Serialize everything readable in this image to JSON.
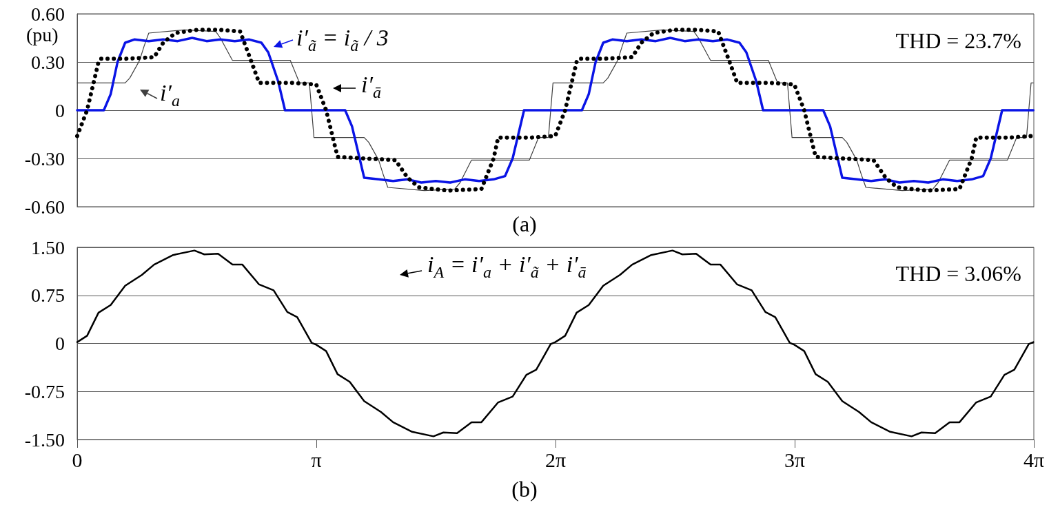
{
  "chart_data": [
    {
      "type": "line",
      "ylabel": "(pu)",
      "annotations": [
        "THD = 23.7%",
        "(a)"
      ],
      "xlim": [
        0,
        12.5664
      ],
      "ylim": [
        -0.6,
        0.6
      ],
      "yticks": [
        {
          "value": -0.6,
          "label": "-0.60"
        },
        {
          "value": -0.3,
          "label": "-0.30"
        },
        0,
        {
          "value": 0.3,
          "label": "0.30"
        },
        {
          "value": 0.6,
          "label": "0.60"
        }
      ],
      "grid": "y",
      "legend": "top left",
      "tick_labels": "y",
      "series": [
        {
          "name": "i′$_{a}$",
          "color": "#404040",
          "line_style": "solid",
          "x": [
            0,
            0.63,
            0.69,
            0.82,
            0.88,
            0.94,
            1.41,
            1.82,
            1.88,
            2.04,
            2.8,
            2.92,
            3.05,
            3.11,
            3.77,
            3.83,
            3.96,
            4.02,
            4.08,
            4.56,
            4.96,
            5.03,
            5.18,
            5.94,
            6.06,
            6.19,
            6.25,
            6.91,
            6.97,
            7.1,
            7.16,
            7.22,
            7.69,
            8.1,
            8.16,
            8.32,
            9.08,
            9.2,
            9.33,
            9.39,
            10.05,
            10.11,
            10.24,
            10.3,
            10.36,
            10.84,
            11.24,
            11.31,
            11.46,
            12.22,
            12.34,
            12.47,
            12.53,
            12.56
          ],
          "values": [
            0.17,
            0.17,
            0.2,
            0.31,
            0.4,
            0.48,
            0.5,
            0.49,
            0.45,
            0.31,
            0.31,
            0.17,
            0.17,
            -0.17,
            -0.17,
            -0.2,
            -0.31,
            -0.4,
            -0.48,
            -0.5,
            -0.49,
            -0.45,
            -0.31,
            -0.31,
            -0.17,
            -0.17,
            0.17,
            0.17,
            0.2,
            0.31,
            0.4,
            0.48,
            0.5,
            0.49,
            0.45,
            0.31,
            0.31,
            0.17,
            0.17,
            -0.17,
            -0.17,
            -0.2,
            -0.31,
            -0.4,
            -0.48,
            -0.5,
            -0.49,
            -0.45,
            -0.31,
            -0.31,
            -0.17,
            -0.17,
            0.17,
            0.17
          ]
        },
        {
          "name": "i′$_{ã}$ = i$_{ã}$ / 3",
          "color": "#0a14e6",
          "line_style": "solid",
          "x": [
            0,
            0.35,
            0.44,
            0.53,
            0.63,
            0.75,
            0.94,
            1.13,
            1.32,
            1.51,
            1.7,
            1.88,
            2.07,
            2.26,
            2.42,
            2.51,
            2.64,
            2.73,
            3.52,
            3.61,
            3.71,
            3.77,
            3.96,
            4.15,
            4.34,
            4.52,
            4.71,
            4.9,
            5.09,
            5.28,
            5.47,
            5.62,
            5.72,
            5.81,
            5.87,
            6.28,
            6.63,
            6.72,
            6.81,
            6.91,
            7.03,
            7.22,
            7.41,
            7.6,
            7.79,
            7.98,
            8.16,
            8.35,
            8.54,
            8.7,
            8.79,
            8.92,
            9.01,
            9.8,
            9.89,
            9.99,
            10.05,
            10.24,
            10.43,
            10.62,
            10.8,
            10.99,
            11.18,
            11.37,
            11.56,
            11.75,
            11.9,
            12,
            12.09,
            12.15,
            12.56
          ],
          "values": [
            0,
            0,
            0.1,
            0.3,
            0.42,
            0.44,
            0.43,
            0.44,
            0.43,
            0.45,
            0.43,
            0.44,
            0.43,
            0.44,
            0.42,
            0.36,
            0.18,
            0,
            0,
            -0.1,
            -0.3,
            -0.42,
            -0.43,
            -0.44,
            -0.43,
            -0.45,
            -0.44,
            -0.45,
            -0.43,
            -0.44,
            -0.43,
            -0.41,
            -0.3,
            -0.12,
            0,
            0,
            0,
            0.1,
            0.3,
            0.42,
            0.44,
            0.43,
            0.44,
            0.43,
            0.45,
            0.43,
            0.44,
            0.43,
            0.44,
            0.42,
            0.36,
            0.18,
            0,
            0,
            -0.1,
            -0.3,
            -0.42,
            -0.43,
            -0.44,
            -0.43,
            -0.45,
            -0.44,
            -0.45,
            -0.43,
            -0.44,
            -0.43,
            -0.41,
            -0.3,
            -0.12,
            0,
            0
          ]
        },
        {
          "name": "i′$_{ā}$",
          "color": "#000000",
          "line_style": "dotted",
          "x": [
            0,
            0.13,
            0.28,
            0.31,
            0.63,
            1.01,
            1.13,
            1.29,
            1.57,
            1.88,
            2.14,
            2.29,
            2.39,
            2.83,
            3.14,
            3.27,
            3.42,
            3.77,
            4.18,
            4.34,
            4.49,
            4.87,
            5.31,
            5.47,
            5.53,
            5.97,
            6.28,
            6.41,
            6.56,
            6.59,
            6.91,
            7.29,
            7.41,
            7.57,
            7.85,
            8.16,
            8.42,
            8.57,
            8.67,
            9.11,
            9.42,
            9.55,
            9.7,
            10.05,
            10.46,
            10.62,
            10.77,
            11.15,
            11.59,
            11.75,
            11.81,
            12.25,
            12.56
          ],
          "values": [
            -0.16,
            0,
            0.3,
            0.32,
            0.32,
            0.33,
            0.42,
            0.48,
            0.5,
            0.5,
            0.49,
            0.3,
            0.17,
            0.17,
            0.16,
            0,
            -0.29,
            -0.3,
            -0.31,
            -0.42,
            -0.48,
            -0.5,
            -0.49,
            -0.3,
            -0.17,
            -0.17,
            -0.16,
            0,
            0.3,
            0.32,
            0.32,
            0.33,
            0.42,
            0.48,
            0.5,
            0.5,
            0.49,
            0.3,
            0.17,
            0.17,
            0.16,
            0,
            -0.29,
            -0.3,
            -0.31,
            -0.42,
            -0.48,
            -0.5,
            -0.49,
            -0.3,
            -0.17,
            -0.17,
            -0.16
          ]
        }
      ]
    },
    {
      "type": "line",
      "annotations": [
        "THD = 3.06%",
        "(b)"
      ],
      "xlim": [
        0,
        12.5664
      ],
      "xticks": [
        0,
        {
          "value": 3.1416,
          "label": "π"
        },
        {
          "value": 6.2832,
          "label": "2π"
        },
        {
          "value": 9.4248,
          "label": "3π"
        },
        {
          "value": 12.5664,
          "label": "4π"
        }
      ],
      "ylim": [
        -1.5,
        1.5
      ],
      "yticks": [
        {
          "value": -1.5,
          "label": "-1.50"
        },
        {
          "value": -0.75,
          "label": "-0.75"
        },
        0,
        {
          "value": 0.75,
          "label": "0.75"
        },
        {
          "value": 1.5,
          "label": "1.50"
        }
      ],
      "grid": "y",
      "legend": "top",
      "series": [
        {
          "name": "i$_{A}$ = i′$_{a}$ + i′$_{ã}$ + i′$_{ā}$",
          "color": "#000000",
          "line_style": "solid",
          "x": [
            0,
            0.13,
            0.28,
            0.44,
            0.63,
            0.85,
            1.01,
            1.26,
            1.54,
            1.67,
            1.85,
            2.04,
            2.17,
            2.39,
            2.58,
            2.76,
            2.89,
            3.08,
            3.14,
            3.27,
            3.42,
            3.58,
            3.77,
            3.99,
            4.15,
            4.4,
            4.68,
            4.81,
            4.99,
            5.18,
            5.31,
            5.53,
            5.72,
            5.9,
            6.03,
            6.22,
            6.28,
            6.41,
            6.56,
            6.72,
            6.91,
            7.13,
            7.29,
            7.54,
            7.82,
            7.95,
            8.13,
            8.32,
            8.45,
            8.67,
            8.86,
            9.04,
            9.17,
            9.36,
            9.42,
            9.55,
            9.7,
            9.86,
            10.05,
            10.27,
            10.43,
            10.68,
            10.96,
            11.09,
            11.27,
            11.46,
            11.59,
            11.81,
            12,
            12.18,
            12.31,
            12.5,
            12.56
          ],
          "values": [
            0.02,
            0.12,
            0.48,
            0.6,
            0.9,
            1.07,
            1.23,
            1.38,
            1.45,
            1.39,
            1.4,
            1.23,
            1.23,
            0.92,
            0.83,
            0.49,
            0.41,
            0.01,
            -0.02,
            -0.12,
            -0.48,
            -0.6,
            -0.9,
            -1.07,
            -1.23,
            -1.38,
            -1.45,
            -1.39,
            -1.4,
            -1.23,
            -1.23,
            -0.92,
            -0.83,
            -0.49,
            -0.41,
            -0.01,
            0.02,
            0.12,
            0.48,
            0.6,
            0.9,
            1.07,
            1.23,
            1.38,
            1.45,
            1.39,
            1.4,
            1.23,
            1.23,
            0.92,
            0.83,
            0.49,
            0.41,
            0.01,
            -0.02,
            -0.12,
            -0.48,
            -0.6,
            -0.9,
            -1.07,
            -1.23,
            -1.38,
            -1.45,
            -1.39,
            -1.4,
            -1.23,
            -1.23,
            -0.92,
            -0.83,
            -0.49,
            -0.41,
            -0.01,
            0.02
          ]
        }
      ]
    }
  ]
}
